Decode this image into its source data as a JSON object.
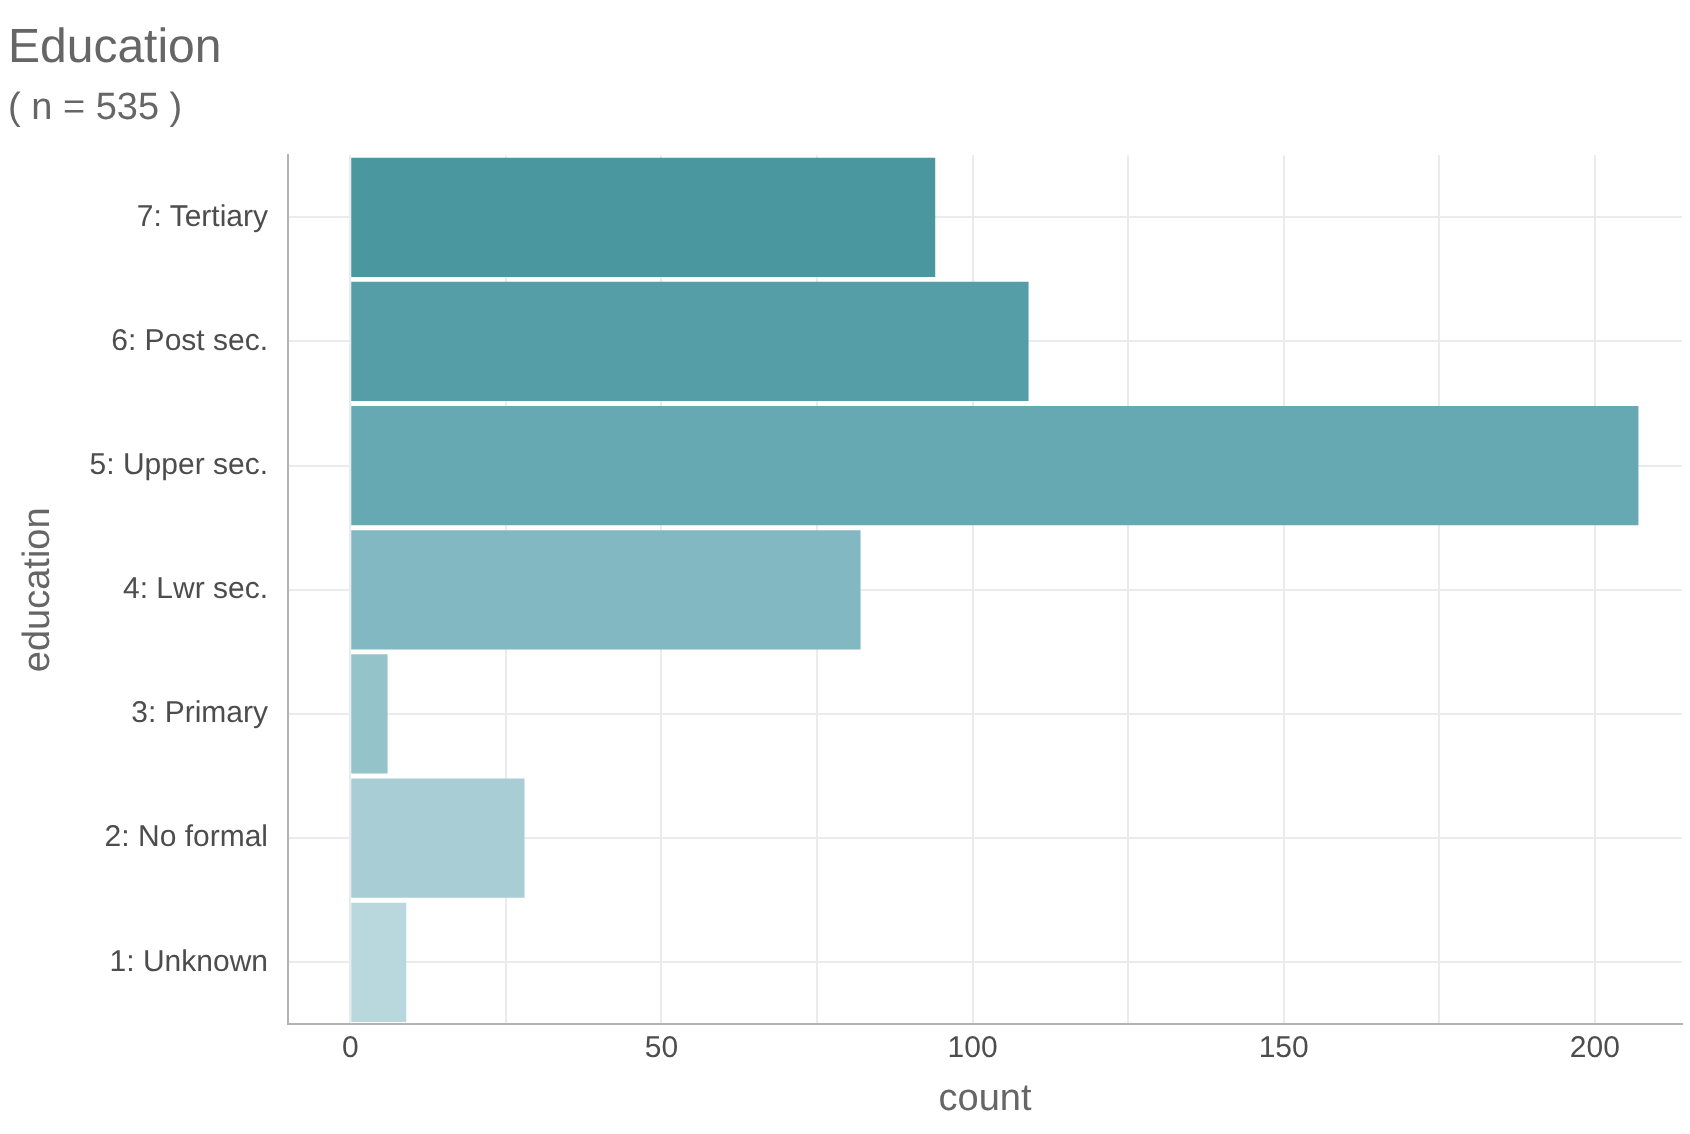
{
  "chart_data": {
    "type": "bar",
    "orientation": "horizontal",
    "title": "Education",
    "subtitle": "( n = 535 )",
    "xlabel": "count",
    "ylabel": "education",
    "categories": [
      "7: Tertiary",
      "6: Post sec.",
      "5: Upper sec.",
      "4: Lwr sec.",
      "3: Primary",
      "2: No formal",
      "1: Unknown"
    ],
    "values": [
      94,
      109,
      207,
      82,
      6,
      28,
      9
    ],
    "colors": [
      "#4a979f",
      "#559ea7",
      "#67a9b3",
      "#82b8c1",
      "#94c3ca",
      "#a8cdd4",
      "#b9d8dd"
    ],
    "xlim": [
      -10,
      214
    ],
    "xticks": [
      0,
      {
        "value": 25,
        "label": null
      },
      50,
      {
        "value": 75,
        "label": null
      },
      100,
      {
        "value": 125,
        "label": null
      },
      150,
      {
        "value": 175,
        "label": null
      },
      200
    ],
    "grid": true
  }
}
